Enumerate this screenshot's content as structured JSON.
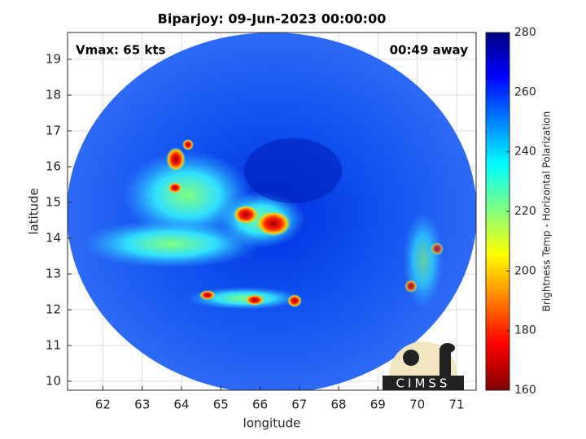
{
  "chart_data": {
    "type": "image",
    "title": "Biparjoy: 09-Jun-2023 00:00:00",
    "xlabel": "longitude",
    "ylabel": "latitude",
    "xlim": [
      61.1,
      71.5
    ],
    "ylim": [
      9.75,
      19.75
    ],
    "xticks": [
      62,
      63,
      64,
      65,
      66,
      67,
      68,
      69,
      70,
      71
    ],
    "yticks": [
      10,
      11,
      12,
      13,
      14,
      15,
      16,
      17,
      18,
      19
    ],
    "grid": true,
    "annotations": [
      "Vmax: 65 kts",
      "00:49 away"
    ],
    "logo": "CIMSS",
    "colorbar": {
      "label": "Brightness Temp - Horizontal Polarization",
      "lim": [
        160,
        280
      ],
      "ticks": [
        160,
        180,
        200,
        220,
        240,
        260,
        280
      ]
    }
  }
}
